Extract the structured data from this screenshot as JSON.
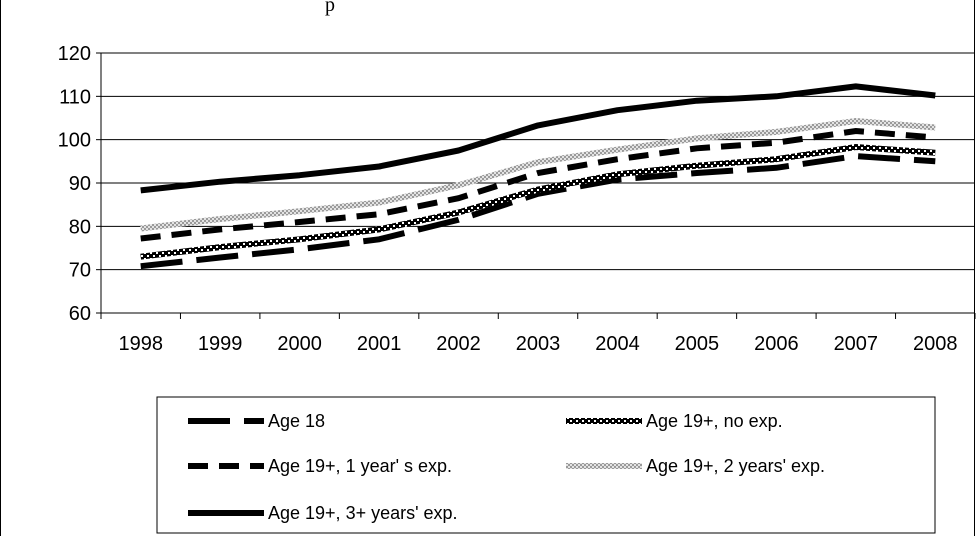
{
  "header_fragment": "p",
  "chart_data": {
    "type": "line",
    "title": "",
    "xlabel": "",
    "ylabel": "",
    "ylim": [
      60,
      120
    ],
    "yticks": [
      60,
      70,
      80,
      90,
      100,
      110,
      120
    ],
    "grid": "horizontal",
    "legend_position": "bottom",
    "categories": [
      "1998",
      "1999",
      "2000",
      "2001",
      "2002",
      "2003",
      "2004",
      "2005",
      "2006",
      "2007",
      "2008"
    ],
    "series": [
      {
        "name": "Age 18",
        "style": "long-dash",
        "color": "#000000",
        "values": [
          70.8,
          72.8,
          74.7,
          77.0,
          81.5,
          87.5,
          90.8,
          92.3,
          93.5,
          96.2,
          95.0
        ]
      },
      {
        "name": "Age 19+, no exp.",
        "style": "checker",
        "color": "#000000",
        "values": [
          73.0,
          75.2,
          77.0,
          79.3,
          83.2,
          88.5,
          92.0,
          94.0,
          95.5,
          98.3,
          97.0
        ]
      },
      {
        "name": "Age 19+, 1 year' s exp.",
        "style": "dash",
        "color": "#000000",
        "values": [
          77.2,
          79.3,
          81.0,
          82.8,
          86.5,
          92.3,
          95.5,
          98.0,
          99.3,
          102.0,
          100.5
        ]
      },
      {
        "name": "Age 19+, 2 years' exp.",
        "style": "dotted-grey",
        "color": "#bdbdbd",
        "values": [
          79.5,
          81.7,
          83.5,
          85.5,
          89.5,
          94.8,
          97.7,
          100.3,
          101.8,
          104.3,
          102.8
        ]
      },
      {
        "name": "Age 19+, 3+ years' exp.",
        "style": "solid",
        "color": "#000000",
        "values": [
          88.3,
          90.3,
          91.8,
          93.8,
          97.5,
          103.3,
          106.8,
          109.0,
          110.0,
          112.3,
          110.2
        ]
      }
    ]
  }
}
